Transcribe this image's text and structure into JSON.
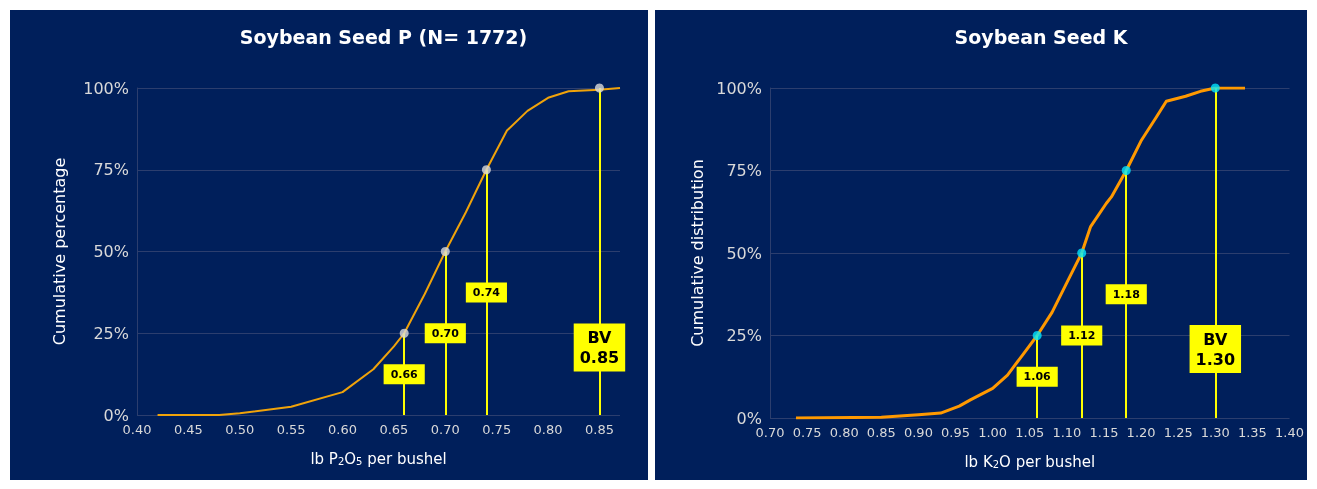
{
  "chart_data": [
    {
      "type": "line",
      "title": "Soybean Seed P (N= 1772)",
      "xlabel": "lb P$_{2}$O$_{5}$ per bushel",
      "ylabel": "Cumulative percentage",
      "series": [
        {
          "type": "line",
          "color": "#f0a30a",
          "marker": "none",
          "x": [
            0.42,
            0.48,
            0.5,
            0.55,
            0.6,
            0.63,
            0.65,
            0.66,
            0.68,
            0.7,
            0.72,
            0.74,
            0.76,
            0.78,
            0.8,
            0.82,
            0.85,
            0.87
          ],
          "values": [
            0,
            0,
            0.5,
            2.5,
            7,
            14,
            21,
            25,
            37,
            50,
            62,
            75,
            87,
            93,
            97,
            99,
            99.5,
            100
          ]
        },
        {
          "type": "scatter",
          "color": "#d9d9d9",
          "marker": "circle",
          "x": [
            0.66,
            0.7,
            0.74,
            0.85
          ],
          "values": [
            25,
            50,
            75,
            100
          ]
        }
      ],
      "ref_lines": [
        {
          "axis": "x",
          "value": 0.66,
          "label": "0.66",
          "color": "#ffff00"
        },
        {
          "axis": "x",
          "value": 0.7,
          "label": "0.70",
          "color": "#ffff00"
        },
        {
          "axis": "x",
          "value": 0.74,
          "label": "0.74",
          "color": "#ffff00"
        },
        {
          "axis": "x",
          "value": 0.85,
          "label": "BV\n0.85",
          "color": "#ffff00"
        }
      ],
      "xlim": [
        0.4,
        0.87
      ],
      "xticks": [
        {
          "value": 0.4,
          "label": "0.40"
        },
        {
          "value": 0.45,
          "label": "0.45"
        },
        {
          "value": 0.5,
          "label": "0.50"
        },
        {
          "value": 0.55,
          "label": "0.55"
        },
        {
          "value": 0.6,
          "label": "0.60"
        },
        {
          "value": 0.65,
          "label": "0.65"
        },
        {
          "value": 0.7,
          "label": "0.70"
        },
        {
          "value": 0.75,
          "label": "0.75"
        },
        {
          "value": 0.8,
          "label": "0.80"
        },
        {
          "value": 0.85,
          "label": "0.85"
        }
      ],
      "ylim": [
        0,
        100
      ],
      "yticks": [
        {
          "value": 0,
          "label": "0%"
        },
        {
          "value": 25,
          "label": "25%"
        },
        {
          "value": 50,
          "label": "50%"
        },
        {
          "value": 75,
          "label": "75%"
        },
        {
          "value": 100,
          "label": "100%"
        }
      ],
      "grid": "y"
    },
    {
      "type": "line",
      "title": "Soybean Seed K",
      "xlabel": "lb K$_{2}$O per bushel",
      "ylabel": "Cumulative distribution",
      "series": [
        {
          "type": "line",
          "color": "#ff9900",
          "marker": "none",
          "x": [
            0.735,
            0.85,
            0.9,
            0.93,
            0.955,
            0.97,
            1.0,
            1.02,
            1.04,
            1.06,
            1.08,
            1.1,
            1.12,
            1.132,
            1.153,
            1.16,
            1.18,
            1.2,
            1.22,
            1.234,
            1.26,
            1.28,
            1.3,
            1.34
          ],
          "values": [
            0,
            0.2,
            1,
            1.5,
            3.6,
            5.5,
            9,
            13,
            19,
            25,
            32,
            41,
            50,
            58,
            65,
            67,
            75,
            84,
            91,
            96,
            97.5,
            99,
            100,
            100
          ]
        },
        {
          "type": "scatter",
          "color": "#00e5ff",
          "marker": "circle",
          "x": [
            1.06,
            1.12,
            1.18,
            1.3
          ],
          "values": [
            25,
            50,
            75,
            100
          ]
        }
      ],
      "ref_lines": [
        {
          "axis": "x",
          "value": 1.06,
          "label": "1.06",
          "color": "#ffff00"
        },
        {
          "axis": "x",
          "value": 1.12,
          "label": "1.12",
          "color": "#ffff00"
        },
        {
          "axis": "x",
          "value": 1.18,
          "label": "1.18",
          "color": "#ffff00"
        },
        {
          "axis": "x",
          "value": 1.3,
          "label": "BV\n1.30",
          "color": "#ffff00"
        }
      ],
      "xlim": [
        0.7,
        1.4
      ],
      "xticks": [
        {
          "value": 0.7,
          "label": "0.70"
        },
        {
          "value": 0.75,
          "label": "0.75"
        },
        {
          "value": 0.8,
          "label": "0.80"
        },
        {
          "value": 0.85,
          "label": "0.85"
        },
        {
          "value": 0.9,
          "label": "0.90"
        },
        {
          "value": 0.95,
          "label": "0.95"
        },
        {
          "value": 1.0,
          "label": "1.00"
        },
        {
          "value": 1.05,
          "label": "1.05"
        },
        {
          "value": 1.1,
          "label": "1.10"
        },
        {
          "value": 1.15,
          "label": "1.15"
        },
        {
          "value": 1.2,
          "label": "1.20"
        },
        {
          "value": 1.25,
          "label": "1.25"
        },
        {
          "value": 1.3,
          "label": "1.30"
        },
        {
          "value": 1.35,
          "label": "1.35"
        },
        {
          "value": 1.4,
          "label": "1.40"
        }
      ],
      "ylim": [
        0,
        100
      ],
      "yticks": [
        {
          "value": 0,
          "label": "0%"
        },
        {
          "value": 25,
          "label": "25%"
        },
        {
          "value": 50,
          "label": "50%"
        },
        {
          "value": 75,
          "label": "75%"
        },
        {
          "value": 100,
          "label": "100%"
        }
      ],
      "grid": "y"
    }
  ]
}
